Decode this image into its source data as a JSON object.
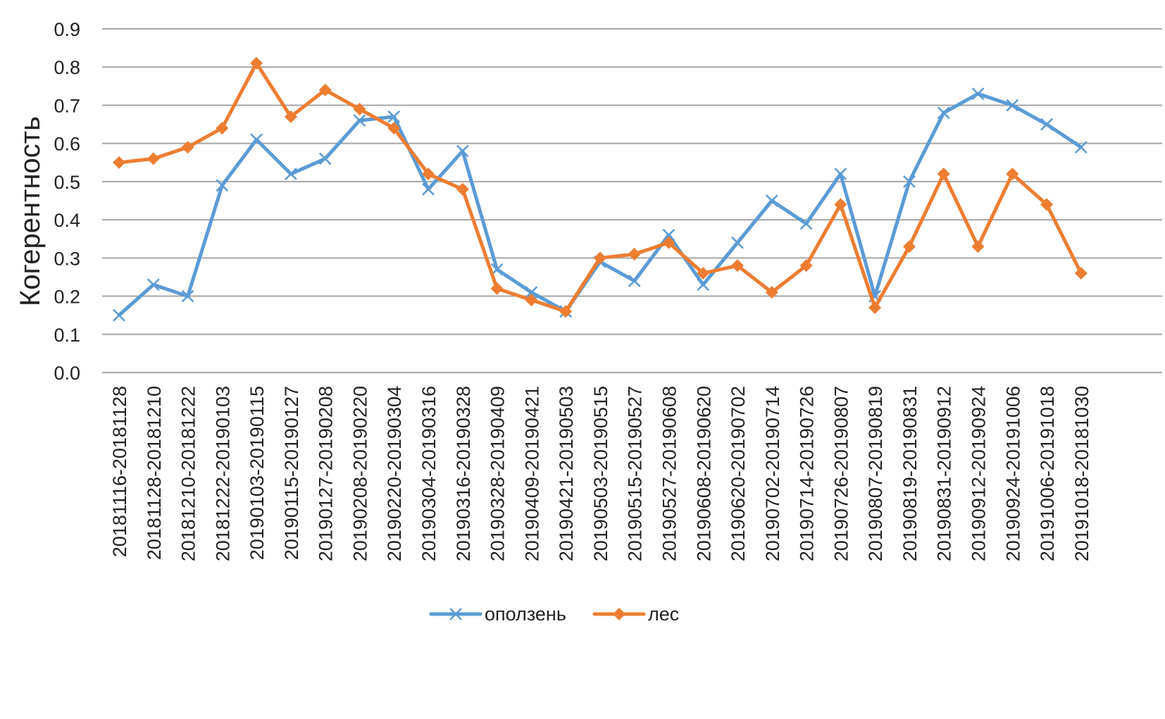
{
  "chart_data": {
    "type": "line",
    "title": "",
    "xlabel": "",
    "ylabel": "Когерентность",
    "ylim": [
      0,
      0.9
    ],
    "yticks": [
      "0.0",
      "0.1",
      "0.2",
      "0.3",
      "0.4",
      "0.5",
      "0.6",
      "0.7",
      "0.8",
      "0.9"
    ],
    "grid": true,
    "legend_position": "bottom",
    "categories": [
      "20181116-20181128",
      "20181128-20181210",
      "20181210-20181222",
      "20181222-20190103",
      "20190103-20190115",
      "20190115-20190127",
      "20190127-20190208",
      "20190208-20190220",
      "20190220-20190304",
      "20190304-20190316",
      "20190316-20190328",
      "20190328-20190409",
      "20190409-20190421",
      "20190421-20190503",
      "20190503-20190515",
      "20190515-20190527",
      "20190527-20190608",
      "20190608-20190620",
      "20190620-20190702",
      "20190702-20190714",
      "20190714-20190726",
      "20190726-20190807",
      "20190807-20190819",
      "20190819-20190831",
      "20190831-20190912",
      "20190912-20190924",
      "20190924-20191006",
      "20191006-20191018",
      "20191018-20181030"
    ],
    "series": [
      {
        "name": "оползень",
        "color": "#5b9bd5",
        "marker": "x",
        "values": [
          0.15,
          0.23,
          0.2,
          0.49,
          0.61,
          0.52,
          0.56,
          0.66,
          0.67,
          0.48,
          0.58,
          0.27,
          0.21,
          0.16,
          0.29,
          0.24,
          0.36,
          0.23,
          0.34,
          0.45,
          0.39,
          0.52,
          0.2,
          0.5,
          0.68,
          0.73,
          0.7,
          0.65,
          0.59
        ]
      },
      {
        "name": "лес",
        "color": "#ed7d31",
        "marker": "diamond",
        "values": [
          0.55,
          0.56,
          0.59,
          0.64,
          0.81,
          0.67,
          0.74,
          0.69,
          0.64,
          0.52,
          0.48,
          0.22,
          0.19,
          0.16,
          0.3,
          0.31,
          0.34,
          0.26,
          0.28,
          0.21,
          0.28,
          0.44,
          0.17,
          0.33,
          0.52,
          0.33,
          0.52,
          0.44,
          0.26
        ]
      }
    ]
  }
}
